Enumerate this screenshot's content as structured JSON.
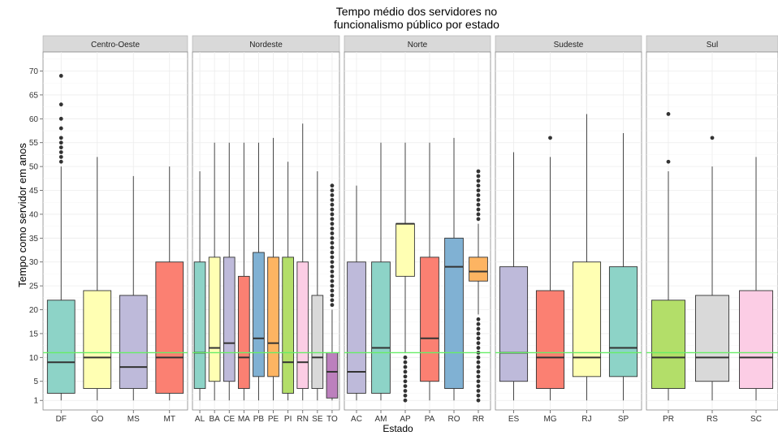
{
  "chart_data": {
    "type": "boxplot",
    "title_lines": [
      "Tempo médio dos servidores no",
      "funcionalismo público por estado"
    ],
    "xlabel": "Estado",
    "ylabel": "Tempo como servidor em anos",
    "y_ticks": [
      1,
      5,
      10,
      15,
      20,
      25,
      30,
      35,
      40,
      45,
      50,
      55,
      60,
      65,
      70
    ],
    "ylim": [
      -1,
      74
    ],
    "reference_line": {
      "y": 11,
      "color": "#66ee66"
    },
    "grid": true,
    "facets": [
      {
        "name": "Centro-Oeste",
        "states": [
          {
            "label": "DF",
            "q1": 2.5,
            "median": 9,
            "q3": 22,
            "whisker_low": 1,
            "whisker_high": 50,
            "outliers": [
              51,
              52,
              53,
              54,
              55,
              56,
              58,
              60,
              63,
              69
            ],
            "color": "#8dd3c7"
          },
          {
            "label": "GO",
            "q1": 3.5,
            "median": 10,
            "q3": 24,
            "whisker_low": 1,
            "whisker_high": 52,
            "outliers": [],
            "color": "#ffffb3"
          },
          {
            "label": "MS",
            "q1": 3.5,
            "median": 8,
            "q3": 23,
            "whisker_low": 1,
            "whisker_high": 48,
            "outliers": [],
            "color": "#bebada"
          },
          {
            "label": "MT",
            "q1": 2.5,
            "median": 10,
            "q3": 30,
            "whisker_low": 1,
            "whisker_high": 50,
            "outliers": [],
            "color": "#fb8072"
          }
        ]
      },
      {
        "name": "Nordeste",
        "states": [
          {
            "label": "AL",
            "q1": 3.5,
            "median": 11,
            "q3": 30,
            "whisker_low": 1,
            "whisker_high": 49,
            "outliers": [],
            "color": "#8dd3c7"
          },
          {
            "label": "BA",
            "q1": 5,
            "median": 12,
            "q3": 31,
            "whisker_low": 1,
            "whisker_high": 55,
            "outliers": [],
            "color": "#ffffb3"
          },
          {
            "label": "CE",
            "q1": 5,
            "median": 13,
            "q3": 31,
            "whisker_low": 1,
            "whisker_high": 55,
            "outliers": [],
            "color": "#bebada"
          },
          {
            "label": "MA",
            "q1": 3.5,
            "median": 10,
            "q3": 27,
            "whisker_low": 1,
            "whisker_high": 55,
            "outliers": [],
            "color": "#fb8072"
          },
          {
            "label": "PB",
            "q1": 6,
            "median": 14,
            "q3": 32,
            "whisker_low": 1,
            "whisker_high": 55,
            "outliers": [],
            "color": "#80b1d3"
          },
          {
            "label": "PE",
            "q1": 6,
            "median": 13,
            "q3": 31,
            "whisker_low": 1,
            "whisker_high": 56,
            "outliers": [],
            "color": "#fdb462"
          },
          {
            "label": "PI",
            "q1": 2.5,
            "median": 9,
            "q3": 31,
            "whisker_low": 1,
            "whisker_high": 51,
            "outliers": [],
            "color": "#b3de69"
          },
          {
            "label": "RN",
            "q1": 3.5,
            "median": 9,
            "q3": 30,
            "whisker_low": 1,
            "whisker_high": 59,
            "outliers": [],
            "color": "#fccde5"
          },
          {
            "label": "SE",
            "q1": 3.5,
            "median": 10,
            "q3": 23,
            "whisker_low": 1,
            "whisker_high": 49,
            "outliers": [],
            "color": "#d9d9d9"
          },
          {
            "label": "TO",
            "q1": 1.5,
            "median": 7,
            "q3": 11,
            "whisker_low": 1,
            "whisker_high": 20,
            "outliers": [
              21,
              22,
              23,
              24,
              25,
              26,
              27,
              28,
              29,
              30,
              31,
              32,
              33,
              34,
              35,
              36,
              37,
              38,
              39,
              40,
              41,
              42,
              43,
              44,
              45,
              46
            ],
            "color": "#bc80bd"
          }
        ]
      },
      {
        "name": "Norte",
        "states": [
          {
            "label": "AC",
            "q1": 2.5,
            "median": 7,
            "q3": 30,
            "whisker_low": 1,
            "whisker_high": 46,
            "outliers": [],
            "color": "#bebada"
          },
          {
            "label": "AM",
            "q1": 2.5,
            "median": 12,
            "q3": 30,
            "whisker_low": 1,
            "whisker_high": 55,
            "outliers": [],
            "color": "#8dd3c7"
          },
          {
            "label": "AP",
            "q1": 27,
            "median": 38,
            "q3": 38,
            "whisker_low": 11,
            "whisker_high": 55,
            "outliers": [
              1,
              2,
              3,
              4,
              5,
              6,
              7,
              8,
              9,
              10
            ],
            "color": "#ffffb3"
          },
          {
            "label": "PA",
            "q1": 5,
            "median": 14,
            "q3": 31,
            "whisker_low": 1,
            "whisker_high": 55,
            "outliers": [],
            "color": "#fb8072"
          },
          {
            "label": "RO",
            "q1": 3.5,
            "median": 29,
            "q3": 35,
            "whisker_low": 1,
            "whisker_high": 56,
            "outliers": [],
            "color": "#80b1d3"
          },
          {
            "label": "RR",
            "q1": 26,
            "median": 28,
            "q3": 31,
            "whisker_low": 19,
            "whisker_high": 38,
            "outliers": [
              1,
              2,
              3,
              4,
              5,
              6,
              7,
              8,
              9,
              10,
              11,
              12,
              13,
              14,
              15,
              16,
              17,
              18,
              39,
              40,
              41,
              42,
              43,
              44,
              45,
              46,
              47,
              48,
              49
            ],
            "color": "#fdb462"
          }
        ]
      },
      {
        "name": "Sudeste",
        "states": [
          {
            "label": "ES",
            "q1": 5,
            "median": 11,
            "q3": 29,
            "whisker_low": 1,
            "whisker_high": 53,
            "outliers": [],
            "color": "#bebada"
          },
          {
            "label": "MG",
            "q1": 3.5,
            "median": 10,
            "q3": 24,
            "whisker_low": 1,
            "whisker_high": 52,
            "outliers": [
              56
            ],
            "color": "#fb8072"
          },
          {
            "label": "RJ",
            "q1": 6,
            "median": 10,
            "q3": 30,
            "whisker_low": 1,
            "whisker_high": 61,
            "outliers": [],
            "color": "#ffffb3"
          },
          {
            "label": "SP",
            "q1": 6,
            "median": 12,
            "q3": 29,
            "whisker_low": 1,
            "whisker_high": 57,
            "outliers": [],
            "color": "#8dd3c7"
          }
        ]
      },
      {
        "name": "Sul",
        "states": [
          {
            "label": "PR",
            "q1": 3.5,
            "median": 10,
            "q3": 22,
            "whisker_low": 1,
            "whisker_high": 49,
            "outliers": [
              51,
              61
            ],
            "color": "#b3de69"
          },
          {
            "label": "RS",
            "q1": 5,
            "median": 10,
            "q3": 23,
            "whisker_low": 1,
            "whisker_high": 50,
            "outliers": [
              56
            ],
            "color": "#d9d9d9"
          },
          {
            "label": "SC",
            "q1": 3.5,
            "median": 10,
            "q3": 24,
            "whisker_low": 1,
            "whisker_high": 52,
            "outliers": [],
            "color": "#fccde5"
          }
        ]
      }
    ]
  }
}
